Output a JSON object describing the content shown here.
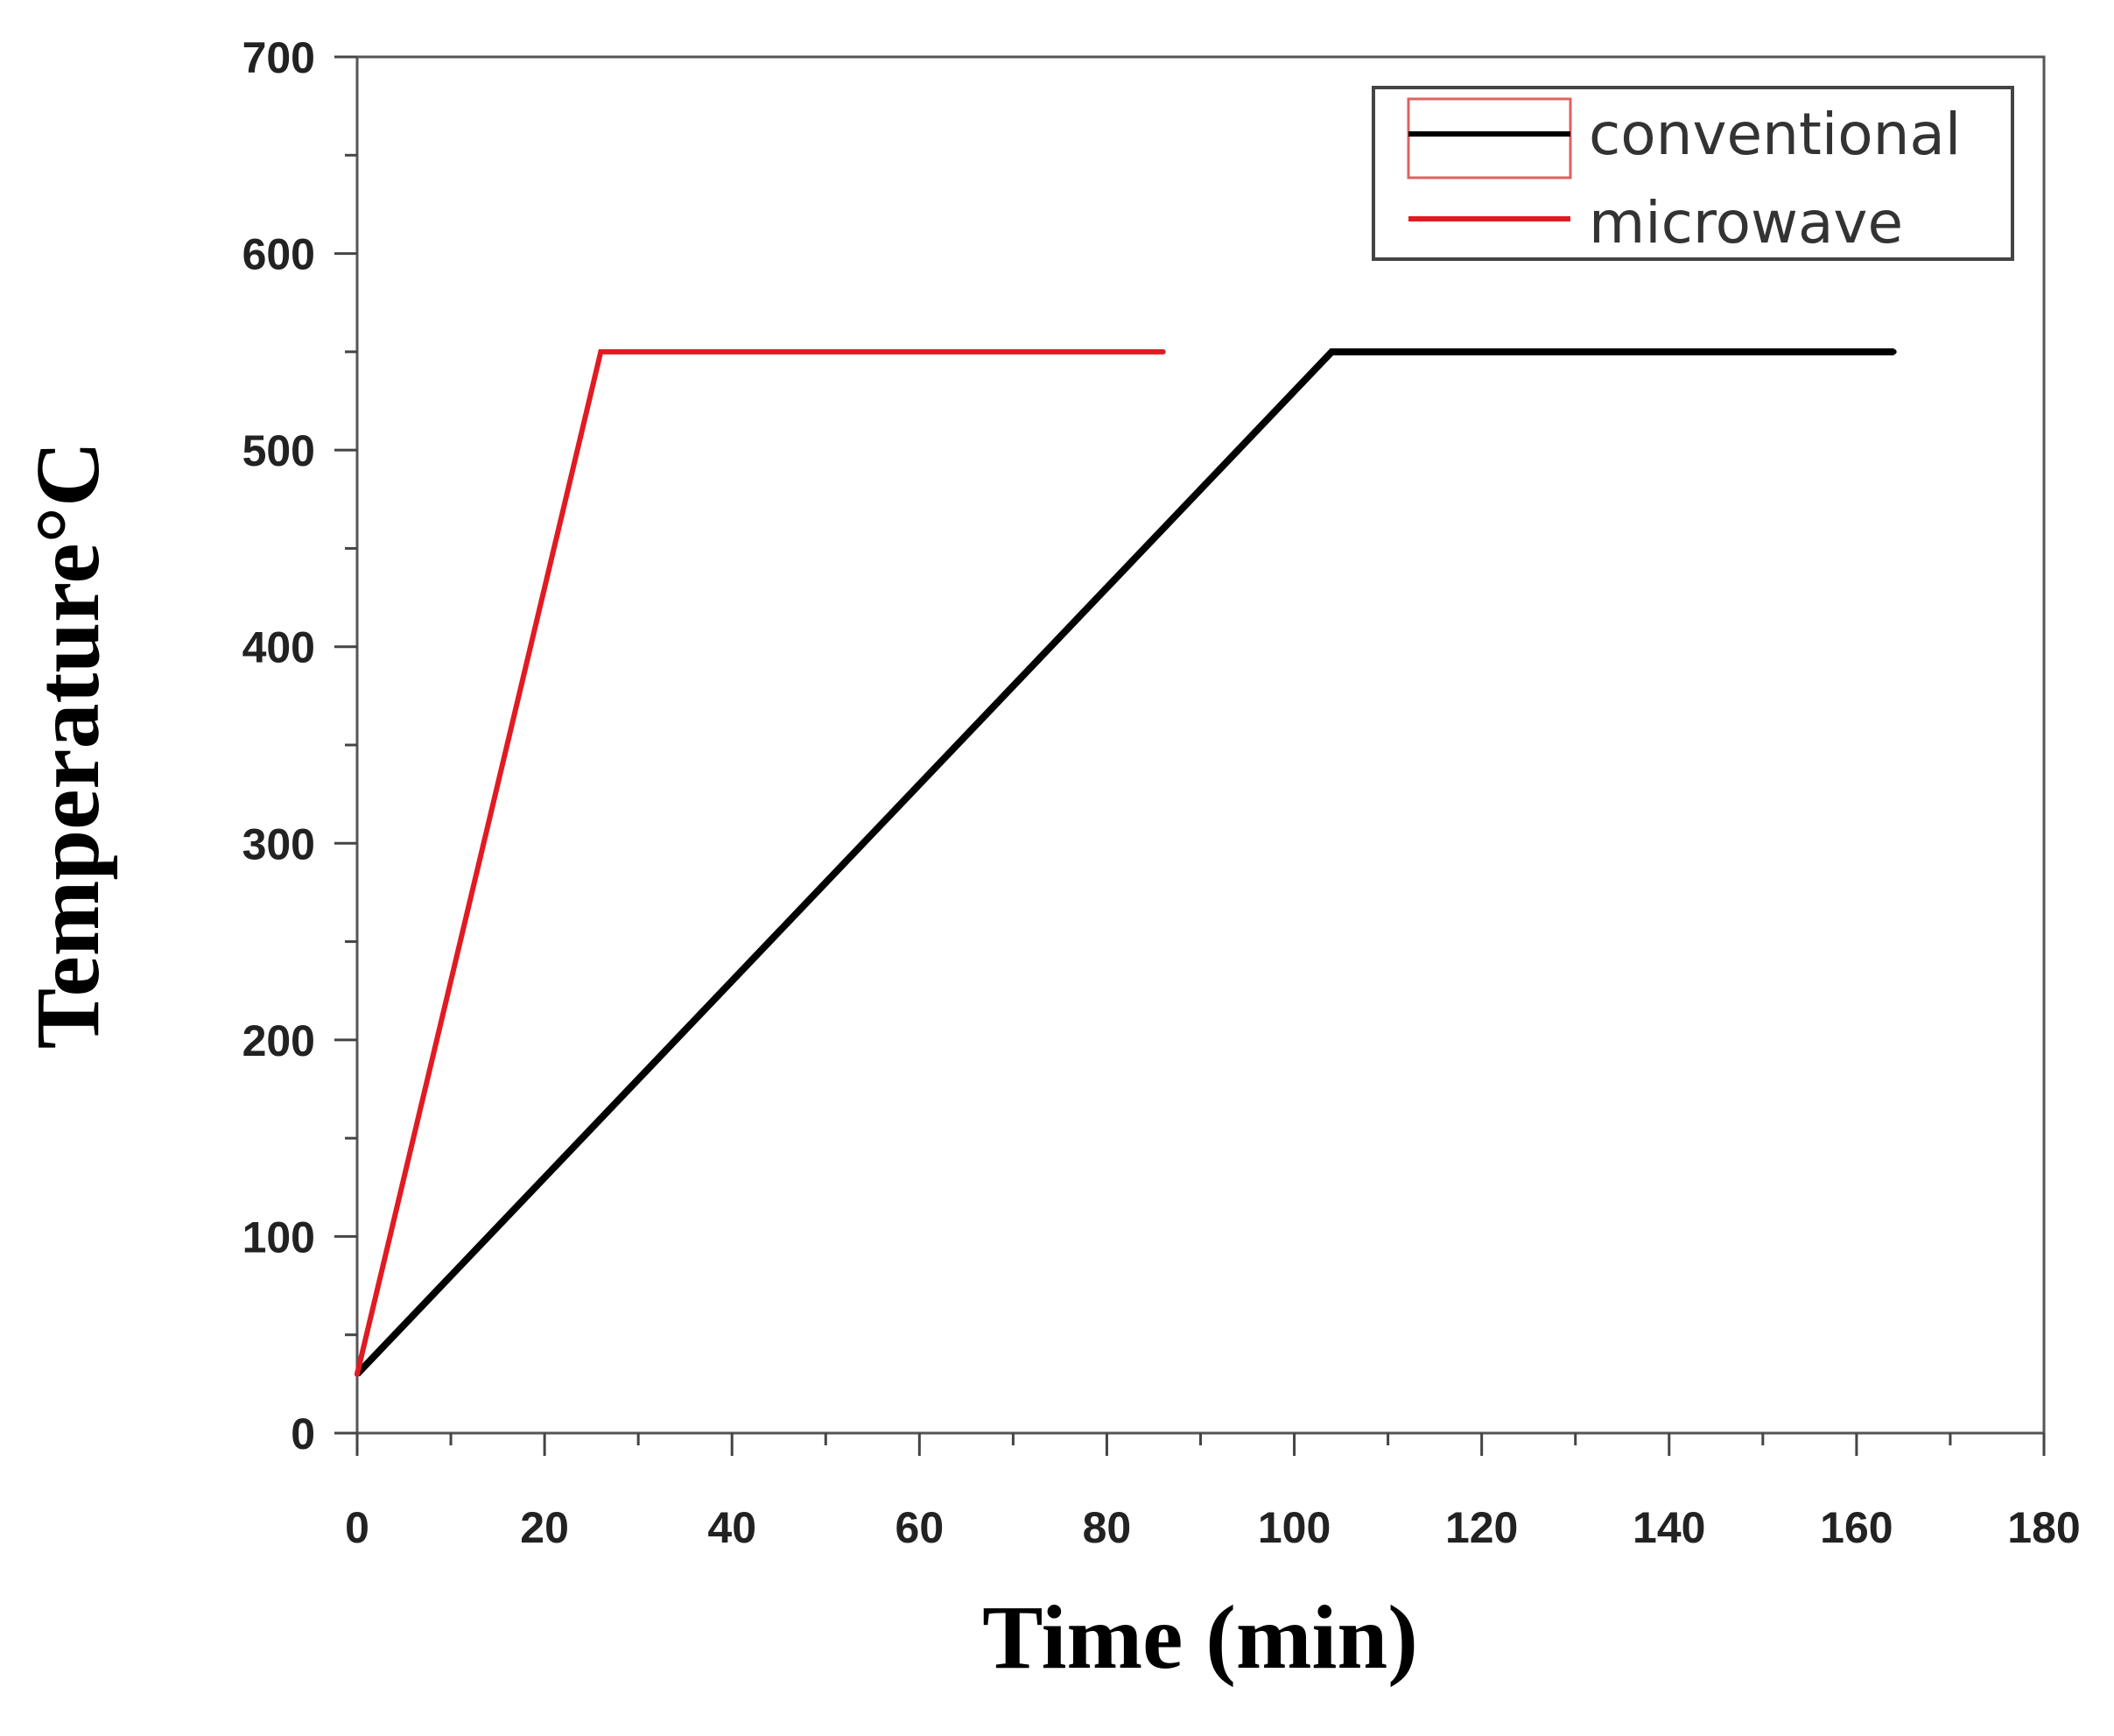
{
  "chart_data": {
    "type": "line",
    "title": "",
    "xlabel": "Time (min)",
    "ylabel": "Temperature°C",
    "xlim": [
      0,
      180
    ],
    "ylim": [
      0,
      700
    ],
    "x_ticks": [
      0,
      20,
      40,
      60,
      80,
      100,
      120,
      140,
      160,
      180
    ],
    "y_ticks": [
      0,
      100,
      200,
      300,
      400,
      500,
      600,
      700
    ],
    "x_ticks_display": [
      "0",
      "20",
      "40",
      "60",
      "80",
      "100",
      "120",
      "140",
      "160",
      "180"
    ],
    "y_ticks_display": [
      "0",
      "100",
      "200",
      "300",
      "400",
      "500",
      "600",
      "700"
    ],
    "grid": false,
    "legend_position": "top-right",
    "series": [
      {
        "name": "conventional",
        "color": "#000000",
        "x": [
          0,
          104,
          164
        ],
        "y": [
          30,
          550,
          550
        ]
      },
      {
        "name": "microwave",
        "color": "#e11b22",
        "x": [
          0,
          26,
          86
        ],
        "y": [
          30,
          550,
          550
        ]
      }
    ]
  }
}
